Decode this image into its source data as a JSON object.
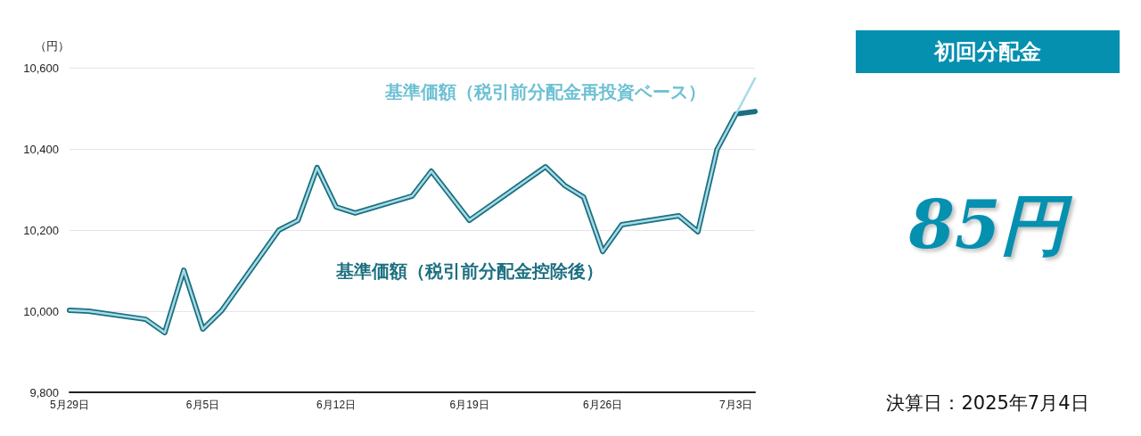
{
  "chart_data": {
    "type": "line",
    "ylabel": "（円）",
    "x": [
      "--05-29",
      "--05-30",
      "--06-02",
      "--06-03",
      "--06-04",
      "--06-05",
      "--06-06",
      "--06-09",
      "--06-10",
      "--06-11",
      "--06-12",
      "--06-13",
      "--06-16",
      "--06-17",
      "--06-19",
      "--06-23",
      "--06-24",
      "--06-25",
      "--06-26",
      "--06-27",
      "--06-30",
      "--07-01",
      "--07-02",
      "--07-03",
      "--07-04"
    ],
    "series": [
      {
        "name": "基準価額（税引前分配金控除後）",
        "color": "#1b6f80",
        "values": [
          10002,
          10000,
          9980,
          9947,
          10101,
          9956,
          10002,
          10200,
          10224,
          10354,
          10257,
          10242,
          10284,
          10345,
          10224,
          10356,
          10310,
          10281,
          10147,
          10213,
          10235,
          10196,
          10398,
          10486,
          10492
        ]
      },
      {
        "name": "基準価額（税引前分配金再投資ベース）",
        "color": "#a6dbe6",
        "values": [
          10002,
          10000,
          9980,
          9947,
          10101,
          9956,
          10002,
          10200,
          10224,
          10354,
          10257,
          10242,
          10284,
          10345,
          10224,
          10356,
          10310,
          10281,
          10147,
          10213,
          10235,
          10196,
          10398,
          10486,
          10574
        ]
      }
    ],
    "xlim": [
      "--05-29",
      "--07-04"
    ],
    "xticks": [
      {
        "value": "--05-29",
        "label": "5月29日"
      },
      {
        "value": "--06-05",
        "label": "6月5日"
      },
      {
        "value": "--06-12",
        "label": "6月12日"
      },
      {
        "value": "--06-19",
        "label": "6月19日"
      },
      {
        "value": "--06-26",
        "label": "6月26日"
      },
      {
        "value": "--07-03",
        "label": "7月3日"
      }
    ],
    "ylim": [
      9800,
      10600
    ],
    "yticks": [
      {
        "value": 9800,
        "label": "9,800"
      },
      {
        "value": 10000,
        "label": "10,000"
      },
      {
        "value": 10200,
        "label": "10,200"
      },
      {
        "value": 10400,
        "label": "10,400"
      },
      {
        "value": 10600,
        "label": "10,600"
      }
    ],
    "grid": "y",
    "legend": false,
    "marker": "none",
    "line_style": "solid",
    "annotations": [
      "初回分配金",
      "85円",
      "決算日：2025年7月4日"
    ]
  }
}
